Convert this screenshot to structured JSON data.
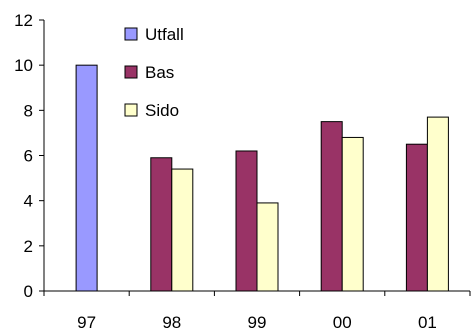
{
  "chart_data": {
    "type": "bar",
    "categories": [
      "97",
      "98",
      "99",
      "00",
      "01"
    ],
    "series": [
      {
        "name": "Utfall",
        "color": "#9999ff",
        "values": [
          10,
          null,
          null,
          null,
          null
        ]
      },
      {
        "name": "Bas",
        "color": "#993366",
        "values": [
          null,
          5.9,
          6.2,
          7.5,
          6.5
        ]
      },
      {
        "name": "Sido",
        "color": "#ffffcc",
        "values": [
          null,
          5.4,
          3.9,
          6.8,
          7.7
        ]
      }
    ],
    "ylim": [
      0,
      12
    ],
    "yticks": [
      "0",
      "2",
      "4",
      "6",
      "8",
      "10",
      "12"
    ],
    "legend_position": "top-left",
    "grid": false
  }
}
